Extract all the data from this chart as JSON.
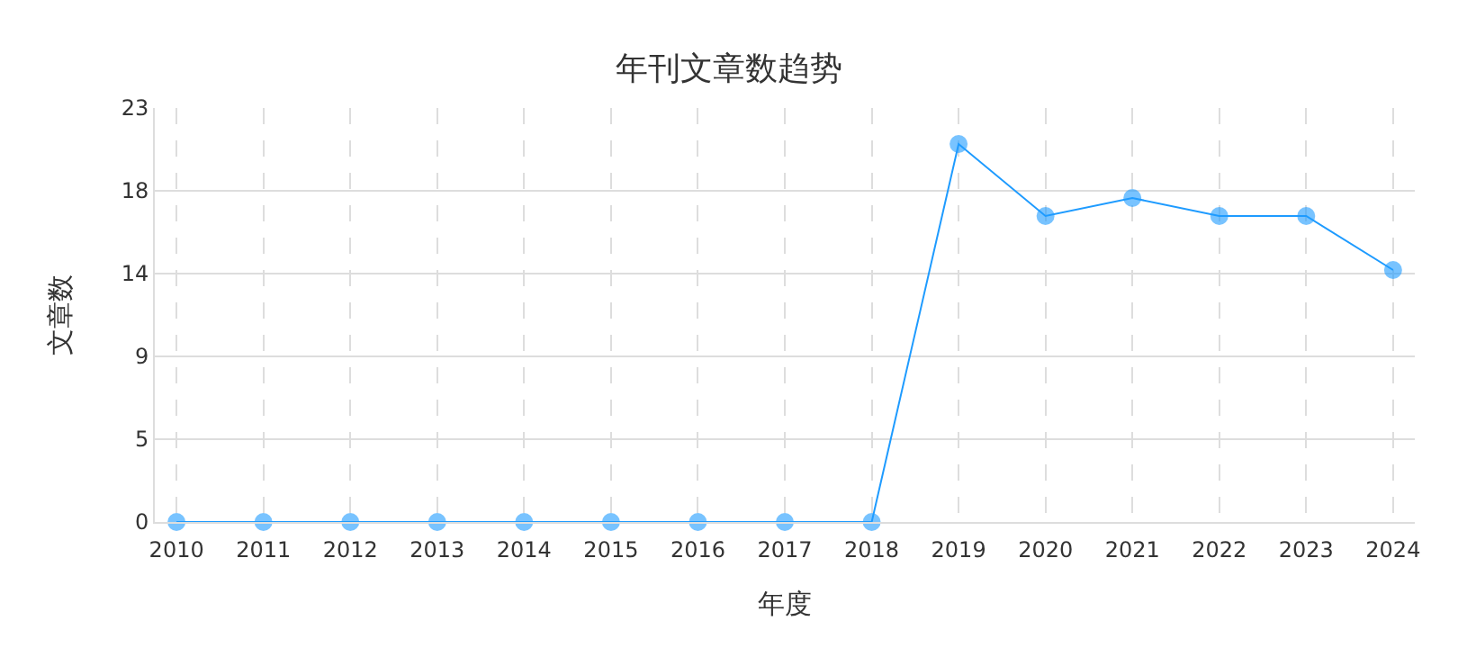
{
  "chart_data": {
    "type": "line",
    "title": "年刊文章数趋势",
    "xlabel": "年度",
    "ylabel": "文章数",
    "categories": [
      "2010",
      "2011",
      "2012",
      "2013",
      "2014",
      "2015",
      "2016",
      "2017",
      "2018",
      "2019",
      "2020",
      "2021",
      "2022",
      "2023",
      "2024"
    ],
    "series": [
      {
        "color": "#1e9bff",
        "values": [
          0,
          0,
          0,
          0,
          0,
          0,
          0,
          0,
          0,
          21,
          17,
          18,
          17,
          17,
          14
        ]
      }
    ],
    "ylim": [
      0,
      23
    ],
    "yticks": [
      0,
      {
        "value": 4.6,
        "label": "5"
      },
      {
        "value": 9.2,
        "label": "9"
      },
      {
        "value": 13.8,
        "label": "14"
      },
      {
        "value": 18.4,
        "label": "18"
      },
      23
    ],
    "grid": true,
    "marker": "circle",
    "line_style": "solid"
  }
}
